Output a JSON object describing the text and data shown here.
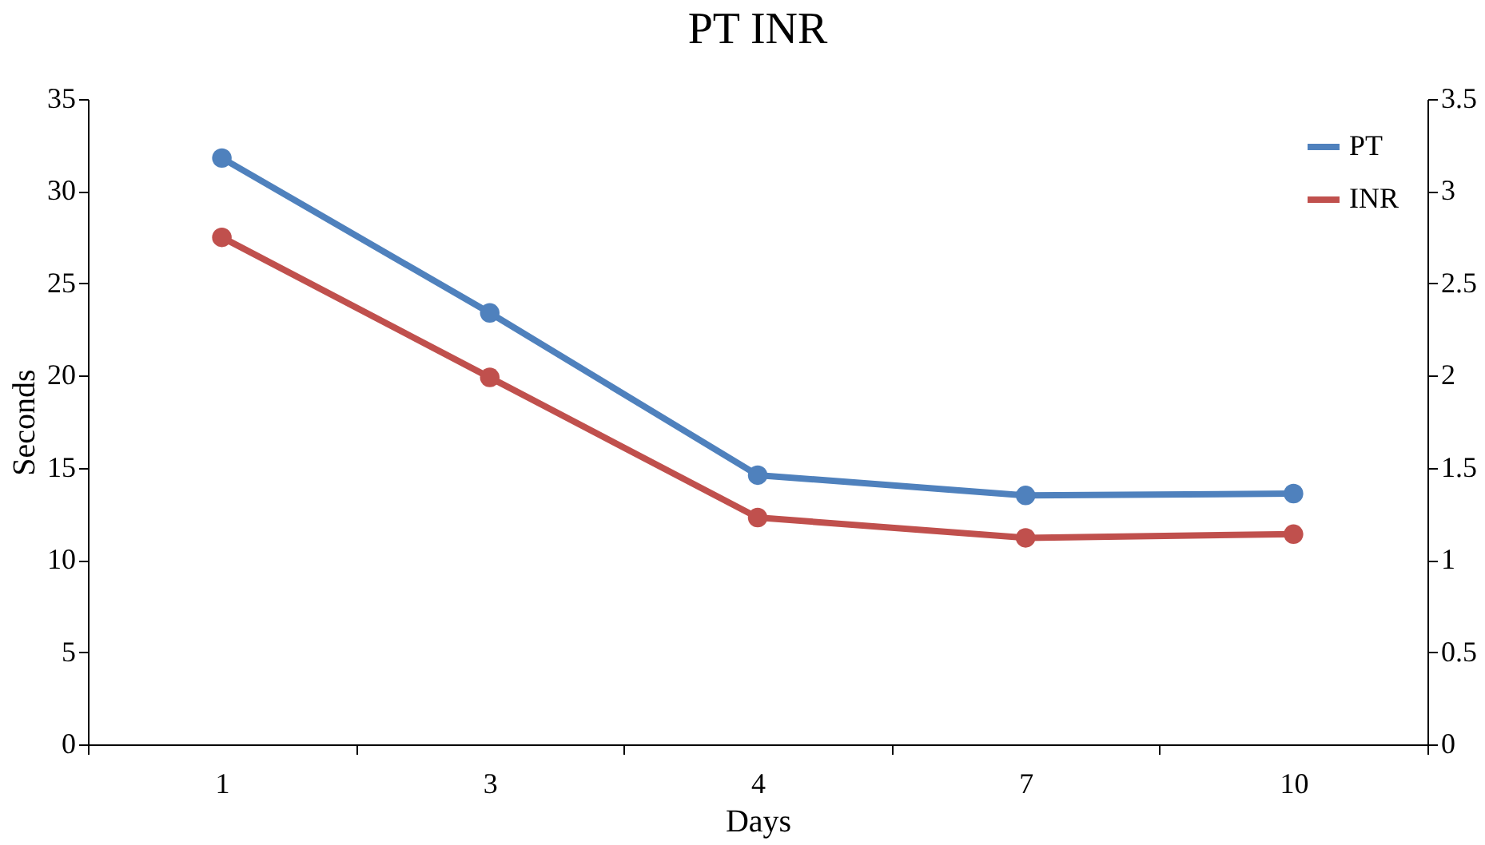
{
  "chart_data": {
    "type": "line",
    "title": "PT INR",
    "xlabel": "Days",
    "ylabel": "Seconds",
    "categories": [
      "1",
      "3",
      "4",
      "7",
      "10"
    ],
    "series": [
      {
        "name": "PT",
        "color": "#4f81bd",
        "values": [
          31.8,
          23.4,
          14.6,
          13.5,
          13.6
        ]
      },
      {
        "name": "INR",
        "color": "#c0504d",
        "axis": "y2",
        "values": [
          2.75,
          1.99,
          1.23,
          1.12,
          1.14
        ]
      }
    ],
    "ylim": [
      0,
      35
    ],
    "yticks": [
      0,
      5,
      10,
      15,
      20,
      25,
      30,
      35
    ],
    "y2lim": [
      0,
      3.5
    ],
    "y2ticks": [
      0,
      0.5,
      1,
      1.5,
      2,
      2.5,
      3,
      3.5
    ],
    "grid": false,
    "legend": "top right",
    "marker": "circle",
    "line_style": "solid"
  }
}
